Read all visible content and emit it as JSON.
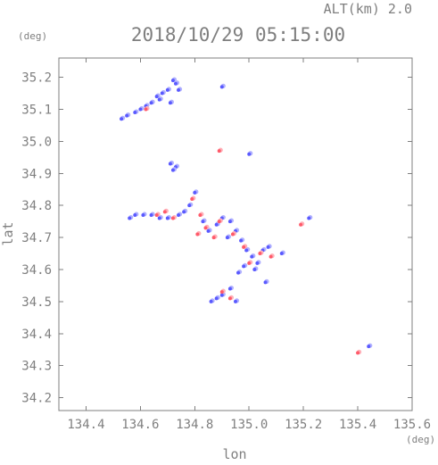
{
  "header": {
    "alt_label": "ALT(km) 2.0",
    "time": "2018/10/29 05:15:00"
  },
  "chart_data": {
    "type": "scatter",
    "title": "2018/10/29 05:15:00",
    "xlabel": "lon",
    "ylabel": "lat",
    "x_unit": "(deg)",
    "y_unit": "(deg)",
    "xlim": [
      134.3,
      135.6
    ],
    "ylim": [
      34.16,
      35.26
    ],
    "xticks": [
      134.4,
      134.6,
      134.8,
      135.0,
      135.2,
      135.4,
      135.6
    ],
    "yticks": [
      34.2,
      34.3,
      34.4,
      34.5,
      34.6,
      34.7,
      34.8,
      34.9,
      35.0,
      35.1,
      35.2
    ],
    "grid": false,
    "colors": {
      "axis": "#7f7f7f",
      "positive": "#ff5a6a",
      "negative": "#5a5aff",
      "positive_light": "#ffb0b8",
      "negative_light": "#b0b0ff"
    },
    "series": [
      {
        "color_key": "negative",
        "points": [
          [
            134.72,
            35.19
          ],
          [
            134.73,
            35.18
          ],
          [
            134.7,
            35.16
          ],
          [
            134.68,
            35.15
          ],
          [
            134.66,
            35.14
          ],
          [
            134.64,
            35.12
          ],
          [
            134.62,
            35.11
          ],
          [
            134.6,
            35.1
          ],
          [
            134.58,
            35.09
          ],
          [
            134.55,
            35.08
          ],
          [
            134.53,
            35.07
          ],
          [
            134.74,
            35.16
          ],
          [
            134.71,
            35.12
          ],
          [
            134.67,
            35.13
          ],
          [
            134.9,
            35.17
          ],
          [
            134.71,
            34.93
          ],
          [
            134.73,
            34.92
          ],
          [
            134.72,
            34.91
          ],
          [
            135.0,
            34.96
          ],
          [
            134.56,
            34.76
          ],
          [
            134.58,
            34.77
          ],
          [
            134.61,
            34.77
          ],
          [
            134.64,
            34.77
          ],
          [
            134.67,
            34.76
          ],
          [
            134.7,
            34.76
          ],
          [
            134.74,
            34.77
          ],
          [
            134.76,
            34.78
          ],
          [
            134.78,
            34.8
          ],
          [
            134.8,
            34.84
          ],
          [
            134.83,
            34.75
          ],
          [
            134.85,
            34.72
          ],
          [
            134.88,
            34.74
          ],
          [
            134.9,
            34.76
          ],
          [
            134.93,
            34.75
          ],
          [
            134.95,
            34.72
          ],
          [
            134.97,
            34.69
          ],
          [
            134.99,
            34.66
          ],
          [
            135.01,
            34.64
          ],
          [
            135.03,
            34.62
          ],
          [
            135.05,
            34.66
          ],
          [
            135.07,
            34.67
          ],
          [
            135.02,
            34.6
          ],
          [
            134.98,
            34.61
          ],
          [
            134.96,
            34.59
          ],
          [
            135.06,
            34.56
          ],
          [
            134.88,
            34.51
          ],
          [
            134.9,
            34.52
          ],
          [
            134.93,
            34.54
          ],
          [
            134.95,
            34.5
          ],
          [
            134.86,
            34.5
          ],
          [
            135.12,
            34.65
          ],
          [
            135.22,
            34.76
          ],
          [
            135.44,
            34.36
          ],
          [
            134.92,
            34.7
          ]
        ]
      },
      {
        "color_key": "positive",
        "points": [
          [
            134.62,
            35.1
          ],
          [
            134.66,
            34.77
          ],
          [
            134.69,
            34.78
          ],
          [
            134.72,
            34.76
          ],
          [
            134.79,
            34.82
          ],
          [
            134.82,
            34.77
          ],
          [
            134.84,
            34.73
          ],
          [
            134.87,
            34.7
          ],
          [
            134.89,
            34.75
          ],
          [
            134.94,
            34.71
          ],
          [
            134.98,
            34.67
          ],
          [
            135.04,
            34.65
          ],
          [
            135.0,
            34.62
          ],
          [
            134.9,
            34.53
          ],
          [
            134.93,
            34.51
          ],
          [
            134.89,
            34.97
          ],
          [
            135.19,
            34.74
          ],
          [
            135.4,
            34.34
          ],
          [
            134.81,
            34.71
          ],
          [
            135.08,
            34.64
          ]
        ]
      }
    ]
  }
}
